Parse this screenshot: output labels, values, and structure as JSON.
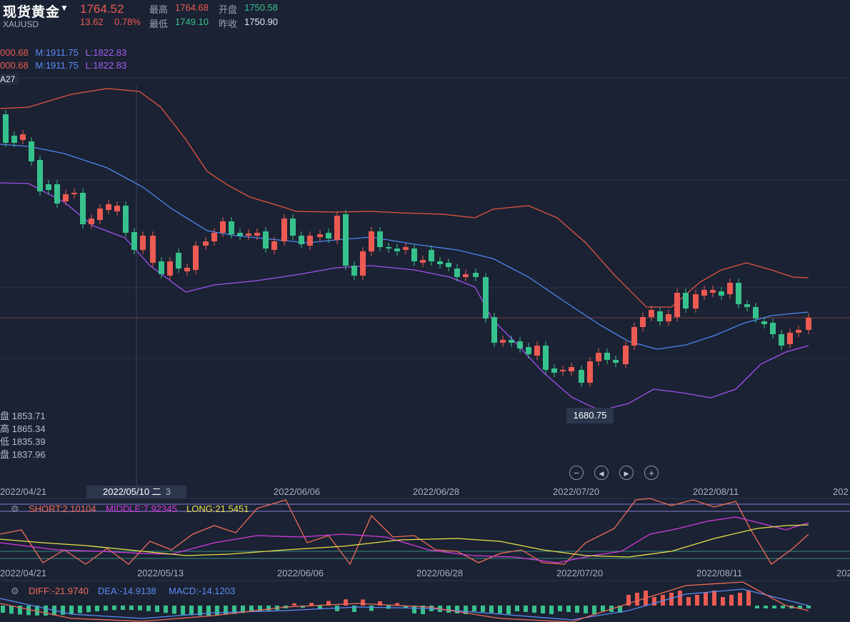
{
  "header": {
    "title": "现货黄金",
    "caret": "▼",
    "symbol": "XAUUSD",
    "price": "1764.52",
    "change": "13.62",
    "change_pct": "0.78%",
    "high_label": "最高",
    "high": "1764.68",
    "open_label": "开盘",
    "open": "1750.58",
    "low_label": "最低",
    "low": "1749.10",
    "prev_close_label": "昨收",
    "prev_close": "1750.90"
  },
  "boll": {
    "line1": {
      "u": "000.68",
      "m": "M:1911.75",
      "l": "L:1822.83"
    },
    "line2": {
      "u": "000.68",
      "m": "M:1911.75",
      "l": "L:1822.83"
    },
    "tag": "A27"
  },
  "cursor_ohlc": [
    {
      "label": "盘",
      "value": "1853.71"
    },
    {
      "label": "高",
      "value": "1865.34"
    },
    {
      "label": "低",
      "value": "1835.39"
    },
    {
      "label": "盘",
      "value": "1837.96"
    }
  ],
  "low_marker": "1680.75",
  "cursor_date": "2022/05/10 二",
  "cursor_date_tail": "3",
  "x_dates": [
    "2022/04/21",
    "2022/06/06",
    "2022/06/28",
    "2022/07/20",
    "2022/08/11",
    "202"
  ],
  "x_dates_sub": [
    "2022/04/21",
    "2022/05/13",
    "2022/06/06",
    "2022/06/28",
    "2022/07/20",
    "2022/08/11",
    "202"
  ],
  "controls": {
    "zoom_out": "−",
    "prev": "◀",
    "next": "▶",
    "zoom_in": "+"
  },
  "icons": {
    "gear": "settings-gear"
  },
  "ma_indicator": {
    "short": "SHORT:2.10104",
    "middle": "MIDDLE:7.92345",
    "long": "LONG:21.5451"
  },
  "macd_indicator": {
    "diff": "DIFF:-21.9740",
    "dea": "DEA:-14.9138",
    "macd": "MACD:-14.1203"
  },
  "colors": {
    "up": "#ec5a52",
    "down": "#37c18d",
    "upper_band": "#e2553f",
    "middle_band": "#4f86ef",
    "lower_band": "#a052f2",
    "short": "#ef6c5a",
    "middle": "#d43be0",
    "long": "#e7e24a"
  }
}
